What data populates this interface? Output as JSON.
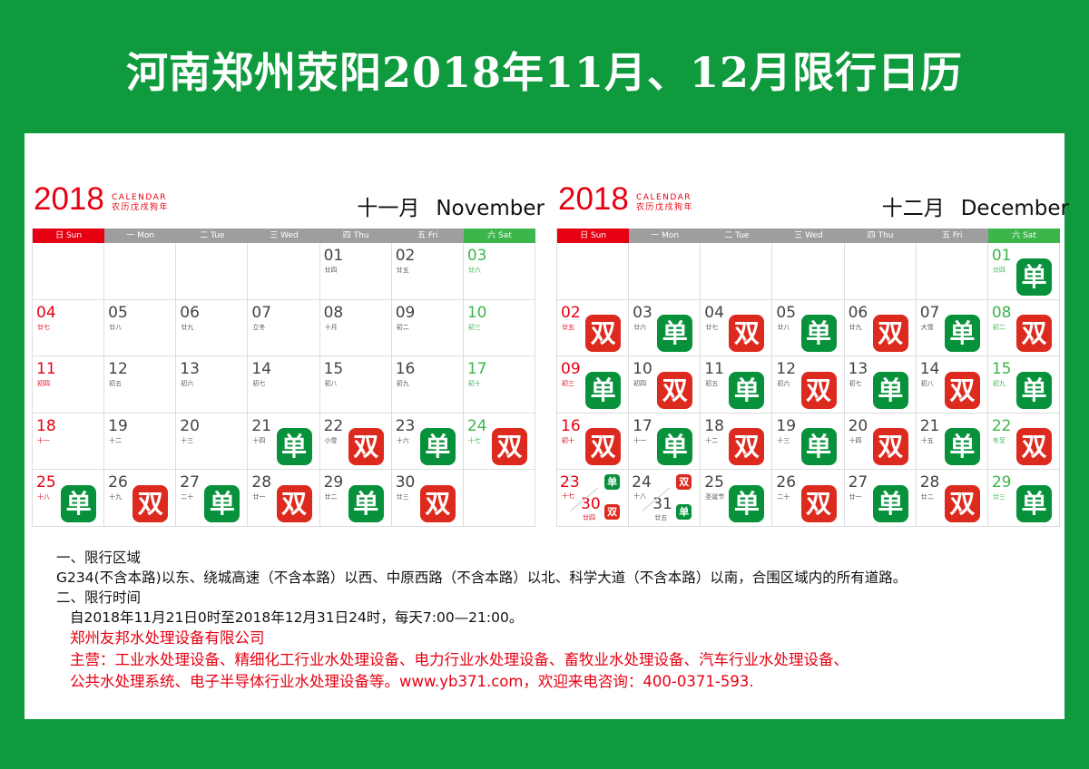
{
  "title": "河南郑州荥阳2018年11月、12月限行日历",
  "colors": {
    "background": "#0f9a3e",
    "sunday": "#e60012",
    "saturday": "#3cb54a",
    "single": "#07913b",
    "double": "#dc2a1e"
  },
  "weekdays": [
    "日 Sun",
    "一 Mon",
    "二 Tue",
    "三 Wed",
    "四 Thu",
    "五 Fri",
    "六 Sat"
  ],
  "tags": {
    "s": "单",
    "d": "双"
  },
  "months": [
    {
      "year": "2018",
      "calendar": "CALENDAR",
      "lunar_year": "农历戊戌狗年",
      "cn": "十一月",
      "en": "November",
      "weeks": [
        [
          null,
          null,
          null,
          null,
          {
            "d": "01",
            "l": "廿四"
          },
          {
            "d": "02",
            "l": "廿五"
          },
          {
            "d": "03",
            "l": "廿六"
          }
        ],
        [
          {
            "d": "04",
            "l": "廿七"
          },
          {
            "d": "05",
            "l": "廿八"
          },
          {
            "d": "06",
            "l": "廿九"
          },
          {
            "d": "07",
            "l": "立冬"
          },
          {
            "d": "08",
            "l": "十月"
          },
          {
            "d": "09",
            "l": "初二"
          },
          {
            "d": "10",
            "l": "初三"
          }
        ],
        [
          {
            "d": "11",
            "l": "初四"
          },
          {
            "d": "12",
            "l": "初五"
          },
          {
            "d": "13",
            "l": "初六"
          },
          {
            "d": "14",
            "l": "初七"
          },
          {
            "d": "15",
            "l": "初八"
          },
          {
            "d": "16",
            "l": "初九"
          },
          {
            "d": "17",
            "l": "初十"
          }
        ],
        [
          {
            "d": "18",
            "l": "十一"
          },
          {
            "d": "19",
            "l": "十二"
          },
          {
            "d": "20",
            "l": "十三"
          },
          {
            "d": "21",
            "l": "十四",
            "t": "s"
          },
          {
            "d": "22",
            "l": "小雪",
            "t": "d"
          },
          {
            "d": "23",
            "l": "十六",
            "t": "s"
          },
          {
            "d": "24",
            "l": "十七",
            "t": "d"
          }
        ],
        [
          {
            "d": "25",
            "l": "十八",
            "t": "s"
          },
          {
            "d": "26",
            "l": "十九",
            "t": "d"
          },
          {
            "d": "27",
            "l": "二十",
            "t": "s"
          },
          {
            "d": "28",
            "l": "廿一",
            "t": "d"
          },
          {
            "d": "29",
            "l": "廿二",
            "t": "s"
          },
          {
            "d": "30",
            "l": "廿三",
            "t": "d"
          },
          null
        ]
      ]
    },
    {
      "year": "2018",
      "calendar": "CALENDAR",
      "lunar_year": "农历戊戌狗年",
      "cn": "十二月",
      "en": "December",
      "weeks": [
        [
          null,
          null,
          null,
          null,
          null,
          null,
          {
            "d": "01",
            "l": "廿四",
            "t": "s"
          }
        ],
        [
          {
            "d": "02",
            "l": "廿五",
            "t": "d"
          },
          {
            "d": "03",
            "l": "廿六",
            "t": "s"
          },
          {
            "d": "04",
            "l": "廿七",
            "t": "d"
          },
          {
            "d": "05",
            "l": "廿八",
            "t": "s"
          },
          {
            "d": "06",
            "l": "廿九",
            "t": "d"
          },
          {
            "d": "07",
            "l": "大雪",
            "t": "s"
          },
          {
            "d": "08",
            "l": "初二",
            "t": "d"
          }
        ],
        [
          {
            "d": "09",
            "l": "初三",
            "t": "s"
          },
          {
            "d": "10",
            "l": "初四",
            "t": "d"
          },
          {
            "d": "11",
            "l": "初五",
            "t": "s"
          },
          {
            "d": "12",
            "l": "初六",
            "t": "d"
          },
          {
            "d": "13",
            "l": "初七",
            "t": "s"
          },
          {
            "d": "14",
            "l": "初八",
            "t": "d"
          },
          {
            "d": "15",
            "l": "初九",
            "t": "s"
          }
        ],
        [
          {
            "d": "16",
            "l": "初十",
            "t": "d"
          },
          {
            "d": "17",
            "l": "十一",
            "t": "s"
          },
          {
            "d": "18",
            "l": "十二",
            "t": "d"
          },
          {
            "d": "19",
            "l": "十三",
            "t": "s"
          },
          {
            "d": "20",
            "l": "十四",
            "t": "d"
          },
          {
            "d": "21",
            "l": "十五",
            "t": "s"
          },
          {
            "d": "22",
            "l": "冬至",
            "t": "d"
          }
        ],
        [
          {
            "d": "23",
            "l": "十七",
            "t": "s",
            "split": {
              "d": "30",
              "l": "廿四",
              "t": "d"
            }
          },
          {
            "d": "24",
            "l": "十八",
            "t": "d",
            "split": {
              "d": "31",
              "l": "廿五",
              "t": "s"
            }
          },
          {
            "d": "25",
            "l": "圣诞节",
            "t": "s"
          },
          {
            "d": "26",
            "l": "二十",
            "t": "d"
          },
          {
            "d": "27",
            "l": "廿一",
            "t": "s"
          },
          {
            "d": "28",
            "l": "廿二",
            "t": "d"
          },
          {
            "d": "29",
            "l": "廿三",
            "t": "s"
          }
        ]
      ]
    }
  ],
  "notes": {
    "h1": "一、限行区域",
    "p1": "G234(不含本路)以东、绕城高速（不含本路）以西、中原西路（不含本路）以北、科学大道（不含本路）以南，合围区域内的所有道路。",
    "h2": "二、限行时间",
    "p2": "自2018年11月21日0时至2018年12月31日24时，每天7:00—21:00。",
    "company": "郑州友邦水处理设备有限公司",
    "business1": "主营：工业水处理设备、精细化工行业水处理设备、电力行业水处理设备、畜牧业水处理设备、汽车行业水处理设备、",
    "business2": "公共水处理系统、电子半导体行业水处理设备等。www.yb371.com，欢迎来电咨询：400-0371-593."
  }
}
